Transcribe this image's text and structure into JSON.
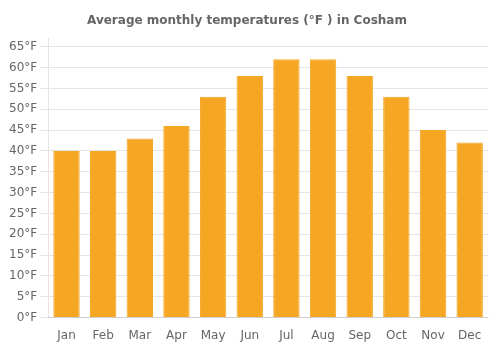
{
  "chart_data": {
    "type": "bar",
    "title": "Average monthly temperatures (°F ) in Cosham",
    "categories": [
      "Jan",
      "Feb",
      "Mar",
      "Apr",
      "May",
      "Jun",
      "Jul",
      "Aug",
      "Sep",
      "Oct",
      "Nov",
      "Dec"
    ],
    "values": [
      40,
      40,
      43,
      46,
      53,
      58,
      62,
      62,
      58,
      53,
      45,
      42
    ],
    "color": "#F5A623",
    "ylim": [
      0,
      67
    ],
    "yticks": [
      {
        "value": 0,
        "label": "0°F"
      },
      {
        "value": 5,
        "label": "5°F"
      },
      {
        "value": 10,
        "label": "10°F"
      },
      {
        "value": 15,
        "label": "15°F"
      },
      {
        "value": 20,
        "label": "20°F"
      },
      {
        "value": 25,
        "label": "25°F"
      },
      {
        "value": 30,
        "label": "30°F"
      },
      {
        "value": 35,
        "label": "35°F"
      },
      {
        "value": 40,
        "label": "40°F"
      },
      {
        "value": 45,
        "label": "45°F"
      },
      {
        "value": 50,
        "label": "50°F"
      },
      {
        "value": 55,
        "label": "55°F"
      },
      {
        "value": 60,
        "label": "60°F"
      },
      {
        "value": 65,
        "label": "65°F"
      }
    ],
    "grid": true
  }
}
